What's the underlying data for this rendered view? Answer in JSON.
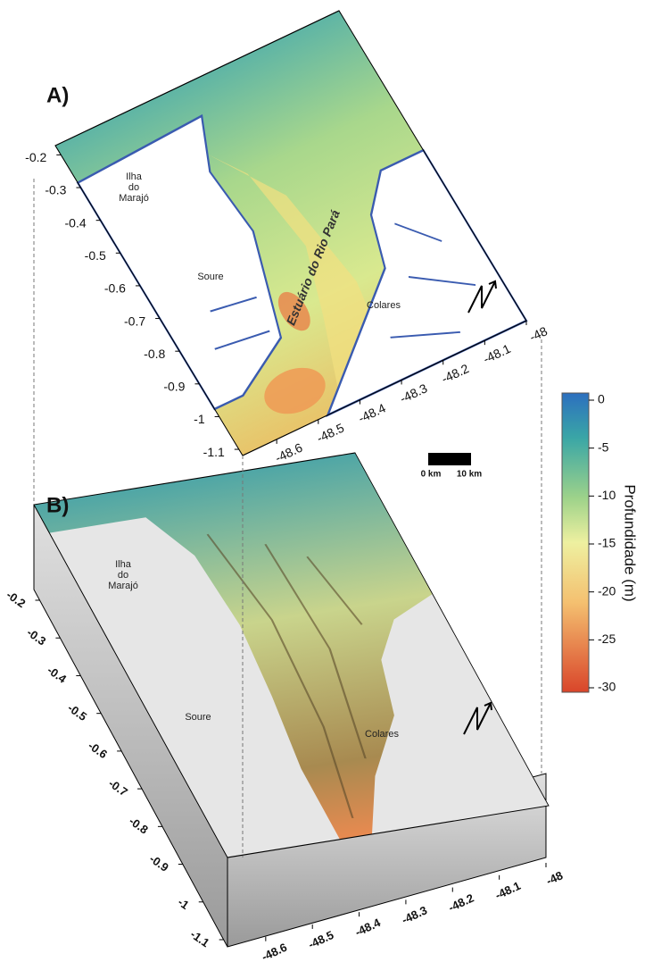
{
  "panel_a": {
    "label": "A)",
    "y_ticks": [
      -0.2,
      -0.3,
      -0.4,
      -0.5,
      -0.6,
      -0.7,
      -0.8,
      -0.9,
      -1,
      -1.1
    ],
    "x_ticks": [
      -48.6,
      -48.5,
      -48.4,
      -48.3,
      -48.2,
      -48.1,
      -48
    ],
    "places": {
      "island": [
        "Ilha",
        "do",
        "Marajó"
      ],
      "soure": "Soure",
      "colares": "Colares",
      "estuary": "Estuário do Rio Pará"
    }
  },
  "scale_bar": {
    "start": "0 km",
    "end": "10 km"
  },
  "colorbar": {
    "title": "Profundidade (m)",
    "ticks": [
      0,
      -5,
      -10,
      -15,
      -20,
      -25,
      -30
    ]
  },
  "panel_b": {
    "label": "B)",
    "y_ticks": [
      -0.2,
      -0.3,
      -0.4,
      -0.5,
      -0.6,
      -0.7,
      -0.8,
      -0.9,
      -1,
      -1.1
    ],
    "x_ticks": [
      -48.6,
      -48.5,
      -48.4,
      -48.3,
      -48.2,
      -48.1,
      -48
    ],
    "places": {
      "island": [
        "Ilha",
        "do",
        "Marajó"
      ],
      "soure": "Soure",
      "colares": "Colares"
    }
  }
}
